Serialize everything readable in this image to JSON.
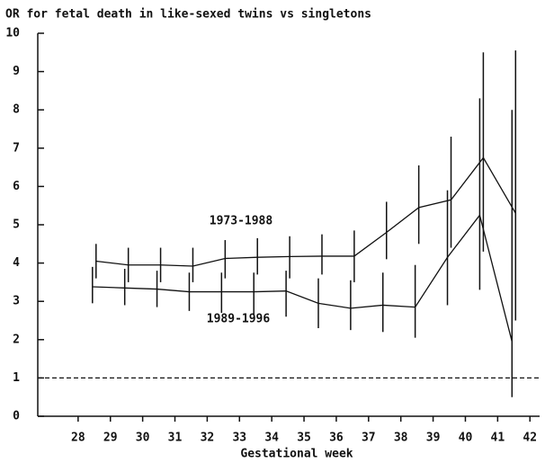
{
  "chart_data": {
    "type": "line",
    "title": "OR for fetal death in like-sexed twins vs singletons",
    "x_label": "Gestational week",
    "x": [
      28.5,
      29.5,
      30.5,
      31.5,
      32.5,
      33.5,
      34.5,
      35.5,
      36.5,
      37.5,
      38.5,
      39.5,
      40.5,
      41.5
    ],
    "series": [
      {
        "name": "1973-1988",
        "color": "#111111",
        "values": [
          4.05,
          3.95,
          3.95,
          3.92,
          4.12,
          4.15,
          4.17,
          4.18,
          4.18,
          4.8,
          5.45,
          5.65,
          6.75,
          5.3
        ],
        "lower": [
          3.6,
          3.5,
          3.5,
          3.5,
          3.6,
          3.7,
          3.6,
          3.7,
          3.5,
          4.1,
          4.5,
          4.4,
          4.3,
          2.5
        ],
        "upper": [
          4.5,
          4.4,
          4.4,
          4.4,
          4.6,
          4.65,
          4.7,
          4.75,
          4.85,
          5.6,
          6.55,
          7.3,
          9.5,
          9.55
        ]
      },
      {
        "name": "1989-1996",
        "color": "#111111",
        "values": [
          3.38,
          3.35,
          3.32,
          3.25,
          3.25,
          3.25,
          3.27,
          2.95,
          2.82,
          2.9,
          2.85,
          4.15,
          5.25,
          1.95
        ],
        "lower": [
          2.95,
          2.9,
          2.85,
          2.75,
          2.7,
          2.65,
          2.6,
          2.3,
          2.25,
          2.2,
          2.05,
          2.9,
          3.3,
          0.5
        ],
        "upper": [
          3.9,
          3.85,
          3.8,
          3.75,
          3.75,
          3.75,
          3.8,
          3.6,
          3.55,
          3.75,
          3.95,
          5.9,
          8.3,
          8.0
        ]
      }
    ],
    "reference_line": 1,
    "xlim": [
      26.75,
      42.3
    ],
    "xticks": [
      28,
      29,
      30,
      31,
      32,
      33,
      34,
      35,
      36,
      37,
      38,
      39,
      40,
      41,
      42
    ],
    "ylim": [
      0,
      10
    ],
    "yticks": [
      0,
      1,
      2,
      3,
      4,
      5,
      6,
      7,
      8,
      9,
      10
    ]
  }
}
